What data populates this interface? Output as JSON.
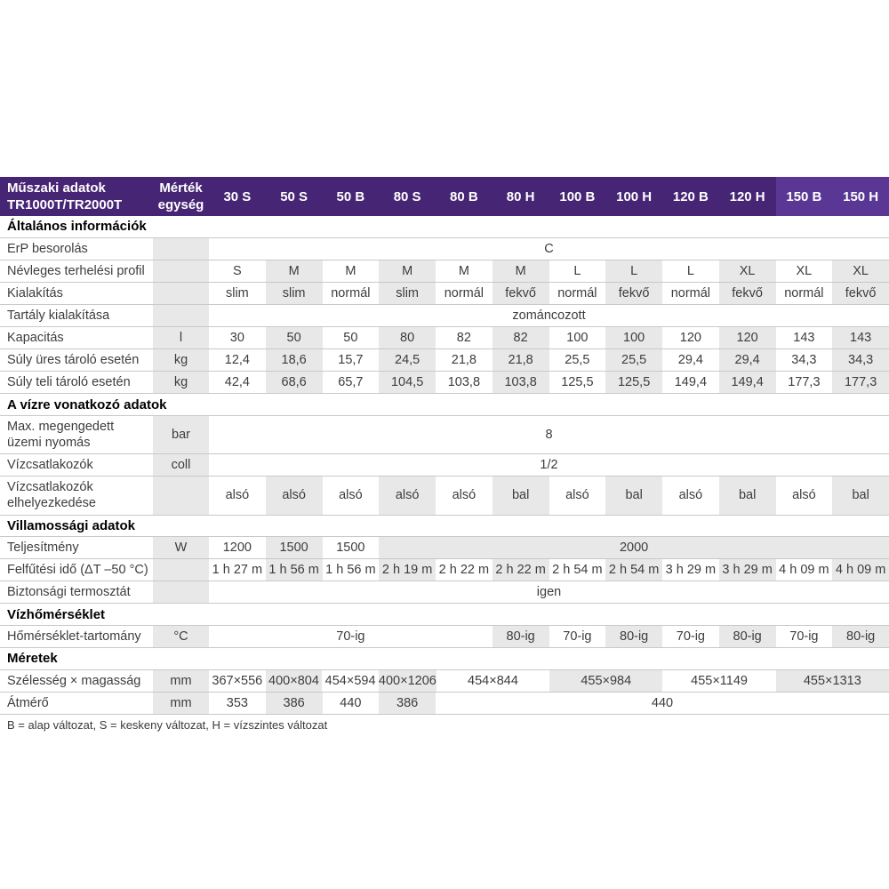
{
  "colors": {
    "header_purple": "#472575",
    "header_purple_light": "#5a3795",
    "cell_gray": "#e8e8e8",
    "row_border": "#c9c9c9",
    "text": "#3d3d3d"
  },
  "table": {
    "header": {
      "title": "Műszaki adatok\nTR1000T/TR2000T",
      "unit_label": "Mérték\negység",
      "columns": [
        "30 S",
        "50 S",
        "50 B",
        "80 S",
        "80 B",
        "80 H",
        "100 B",
        "100 H",
        "120 B",
        "120 H",
        "150 B",
        "150 H"
      ],
      "highlight_start_index": 10
    },
    "sections": [
      {
        "title": "Általános információk",
        "rows": [
          {
            "label": "ErP besorolás",
            "unit": "",
            "cells": [
              {
                "v": "C",
                "span": 12
              }
            ]
          },
          {
            "label": "Névleges terhelési profil",
            "unit": "",
            "cells": [
              {
                "v": "S"
              },
              {
                "v": "M"
              },
              {
                "v": "M"
              },
              {
                "v": "M"
              },
              {
                "v": "M"
              },
              {
                "v": "M"
              },
              {
                "v": "L"
              },
              {
                "v": "L"
              },
              {
                "v": "L"
              },
              {
                "v": "XL"
              },
              {
                "v": "XL"
              },
              {
                "v": "XL"
              }
            ]
          },
          {
            "label": "Kialakítás",
            "unit": "",
            "cells": [
              {
                "v": "slim"
              },
              {
                "v": "slim"
              },
              {
                "v": "normál"
              },
              {
                "v": "slim"
              },
              {
                "v": "normál"
              },
              {
                "v": "fekvő"
              },
              {
                "v": "normál"
              },
              {
                "v": "fekvő"
              },
              {
                "v": "normál"
              },
              {
                "v": "fekvő"
              },
              {
                "v": "normál"
              },
              {
                "v": "fekvő"
              }
            ]
          },
          {
            "label": "Tartály kialakítása",
            "unit": "",
            "cells": [
              {
                "v": "zománcozott",
                "span": 12
              }
            ]
          },
          {
            "label": "Kapacitás",
            "unit": "l",
            "cells": [
              {
                "v": "30"
              },
              {
                "v": "50"
              },
              {
                "v": "50"
              },
              {
                "v": "80"
              },
              {
                "v": "82"
              },
              {
                "v": "82"
              },
              {
                "v": "100"
              },
              {
                "v": "100"
              },
              {
                "v": "120"
              },
              {
                "v": "120"
              },
              {
                "v": "143"
              },
              {
                "v": "143"
              }
            ]
          },
          {
            "label": "Súly üres tároló esetén",
            "unit": "kg",
            "cells": [
              {
                "v": "12,4"
              },
              {
                "v": "18,6"
              },
              {
                "v": "15,7"
              },
              {
                "v": "24,5"
              },
              {
                "v": "21,8"
              },
              {
                "v": "21,8"
              },
              {
                "v": "25,5"
              },
              {
                "v": "25,5"
              },
              {
                "v": "29,4"
              },
              {
                "v": "29,4"
              },
              {
                "v": "34,3"
              },
              {
                "v": "34,3"
              }
            ]
          },
          {
            "label": "Súly teli tároló esetén",
            "unit": "kg",
            "cells": [
              {
                "v": "42,4"
              },
              {
                "v": "68,6"
              },
              {
                "v": "65,7"
              },
              {
                "v": "104,5"
              },
              {
                "v": "103,8"
              },
              {
                "v": "103,8"
              },
              {
                "v": "125,5"
              },
              {
                "v": "125,5"
              },
              {
                "v": "149,4"
              },
              {
                "v": "149,4"
              },
              {
                "v": "177,3"
              },
              {
                "v": "177,3"
              }
            ]
          }
        ]
      },
      {
        "title": "A vízre vonatkozó adatok",
        "rows": [
          {
            "label": "Max. megengedett\nüzemi nyomás",
            "unit": "bar",
            "cells": [
              {
                "v": "8",
                "span": 12
              }
            ]
          },
          {
            "label": "Vízcsatlakozók",
            "unit": "coll",
            "cells": [
              {
                "v": "1/2",
                "span": 12
              }
            ]
          },
          {
            "label": "Vízcsatlakozók\nelhelyezkedése",
            "unit": "",
            "cells": [
              {
                "v": "alsó"
              },
              {
                "v": "alsó"
              },
              {
                "v": "alsó"
              },
              {
                "v": "alsó"
              },
              {
                "v": "alsó"
              },
              {
                "v": "bal"
              },
              {
                "v": "alsó"
              },
              {
                "v": "bal"
              },
              {
                "v": "alsó"
              },
              {
                "v": "bal"
              },
              {
                "v": "alsó"
              },
              {
                "v": "bal"
              }
            ]
          }
        ]
      },
      {
        "title": "Villamossági adatok",
        "rows": [
          {
            "label": "Teljesítmény",
            "unit": "W",
            "cells": [
              {
                "v": "1200"
              },
              {
                "v": "1500"
              },
              {
                "v": "1500"
              },
              {
                "v": "2000",
                "span": 9,
                "g": true
              }
            ]
          },
          {
            "label": "Felfűtési idő (ΔT –50 °C)",
            "unit": "",
            "cells": [
              {
                "v": "1 h 27 m"
              },
              {
                "v": "1 h 56 m"
              },
              {
                "v": "1 h 56 m"
              },
              {
                "v": "2 h 19 m"
              },
              {
                "v": "2 h 22 m"
              },
              {
                "v": "2 h 22 m"
              },
              {
                "v": "2 h 54 m"
              },
              {
                "v": "2 h 54 m"
              },
              {
                "v": "3 h 29 m"
              },
              {
                "v": "3 h 29 m"
              },
              {
                "v": "4 h 09 m"
              },
              {
                "v": "4 h 09 m"
              }
            ]
          },
          {
            "label": "Biztonsági termosztát",
            "unit": "",
            "cells": [
              {
                "v": "igen",
                "span": 12
              }
            ]
          }
        ]
      },
      {
        "title": "Vízhőmérséklet",
        "rows": [
          {
            "label": "Hőmérséklet-tartomány",
            "unit": "°C",
            "cells": [
              {
                "v": "70-ig",
                "span": 5
              },
              {
                "v": "80-ig"
              },
              {
                "v": "70-ig"
              },
              {
                "v": "80-ig"
              },
              {
                "v": "70-ig"
              },
              {
                "v": "80-ig"
              },
              {
                "v": "70-ig"
              },
              {
                "v": "80-ig"
              }
            ]
          }
        ]
      },
      {
        "title": "Méretek",
        "rows": [
          {
            "label": "Szélesség × magasság",
            "unit": "mm",
            "cells": [
              {
                "v": "367×556"
              },
              {
                "v": "400×804"
              },
              {
                "v": "454×594"
              },
              {
                "v": "400×1206"
              },
              {
                "v": "454×844",
                "span": 2
              },
              {
                "v": "455×984",
                "span": 2,
                "g": true
              },
              {
                "v": "455×1149",
                "span": 2
              },
              {
                "v": "455×1313",
                "span": 2,
                "g": true
              }
            ]
          },
          {
            "label": "Átmérő",
            "unit": "mm",
            "cells": [
              {
                "v": "353"
              },
              {
                "v": "386"
              },
              {
                "v": "440"
              },
              {
                "v": "386"
              },
              {
                "v": "440",
                "span": 8
              }
            ]
          }
        ]
      }
    ],
    "footnote": "B = alap változat, S = keskeny változat, H = vízszintes változat"
  }
}
